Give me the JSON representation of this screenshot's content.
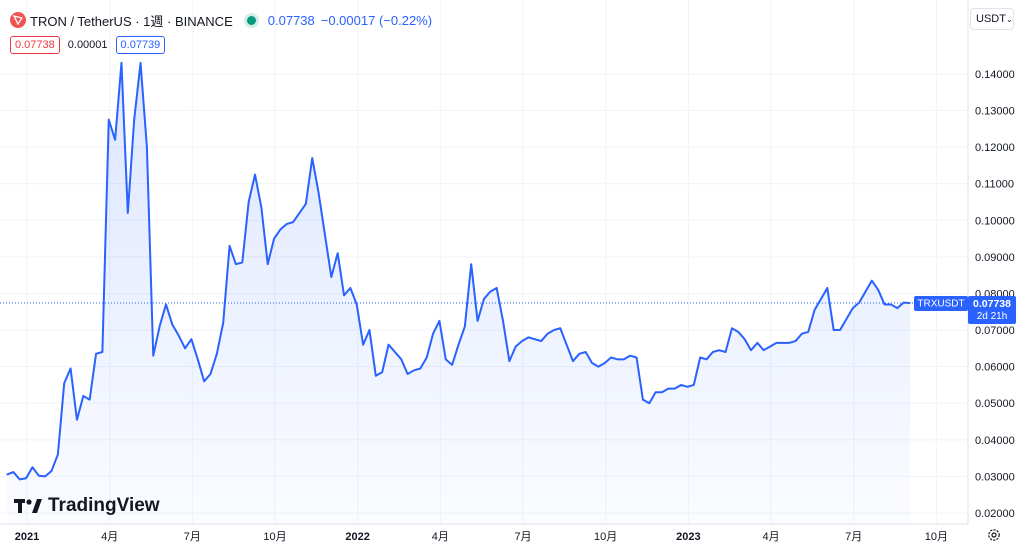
{
  "header": {
    "symbol_title": "TRON / TetherUS · 1週 · BINANCE",
    "last_price": "0.07738",
    "change": "−0.00017 (−0.22%)",
    "logo_icon": "tron-logo-icon",
    "status_icon": "market-open-dot-icon"
  },
  "quotes": {
    "bid": "0.07738",
    "spread": "0.00001",
    "ask": "0.07739"
  },
  "currency_select": {
    "value": "USDT",
    "icon": "chevron-down-icon"
  },
  "price_tag": {
    "symbol": "TRXUSDT",
    "price": "0.07738",
    "countdown": "2d 21h"
  },
  "watermark": {
    "text": "TradingView"
  },
  "settings_icon": "gear-icon",
  "colors": {
    "line": "#2962ff",
    "fill": "#2962ff",
    "bid": "#f23645",
    "ask": "#2962ff",
    "grid": "#f0f3fa",
    "status": "#089981"
  },
  "chart_data": {
    "type": "area",
    "ylim": [
      0.017,
      0.152
    ],
    "y_ticks": [
      0.02,
      0.03,
      0.04,
      0.05,
      0.06,
      0.07,
      0.08,
      0.09,
      0.1,
      0.11,
      0.12,
      0.13,
      0.14
    ],
    "y_tick_labels": [
      "0.02000",
      "0.03000",
      "0.04000",
      "0.05000",
      "0.06000",
      "0.07000",
      "0.08000",
      "0.09000",
      "0.10000",
      "0.11000",
      "0.12000",
      "0.13000",
      "0.14000"
    ],
    "x_ticks": [
      {
        "x": 0,
        "label": "2021",
        "bold": true
      },
      {
        "x": 13,
        "label": "4月",
        "bold": false
      },
      {
        "x": 26,
        "label": "7月",
        "bold": false
      },
      {
        "x": 39,
        "label": "10月",
        "bold": false
      },
      {
        "x": 52,
        "label": "2022",
        "bold": true
      },
      {
        "x": 65,
        "label": "4月",
        "bold": false
      },
      {
        "x": 78,
        "label": "7月",
        "bold": false
      },
      {
        "x": 91,
        "label": "10月",
        "bold": false
      },
      {
        "x": 104,
        "label": "2023",
        "bold": true
      },
      {
        "x": 117,
        "label": "4月",
        "bold": false
      },
      {
        "x": 130,
        "label": "7月",
        "bold": false
      },
      {
        "x": 143,
        "label": "10月",
        "bold": false
      }
    ],
    "xlim": [
      -1,
      148
    ],
    "series": [
      {
        "values": [
          0.0305,
          0.0312,
          0.0292,
          0.0295,
          0.0325,
          0.0302,
          0.03,
          0.0315,
          0.036,
          0.0555,
          0.0595,
          0.0455,
          0.052,
          0.051,
          0.0635,
          0.064,
          0.1275,
          0.122,
          0.143,
          0.102,
          0.1275,
          0.143,
          0.12,
          0.063,
          0.071,
          0.077,
          0.0715,
          0.0685,
          0.065,
          0.0675,
          0.062,
          0.056,
          0.058,
          0.0635,
          0.072,
          0.093,
          0.088,
          0.0885,
          0.105,
          0.1125,
          0.1035,
          0.088,
          0.095,
          0.0975,
          0.099,
          0.0995,
          0.102,
          0.1045,
          0.117,
          0.1075,
          0.096,
          0.0845,
          0.091,
          0.0795,
          0.0815,
          0.077,
          0.066,
          0.07,
          0.0575,
          0.0585,
          0.066,
          0.064,
          0.062,
          0.058,
          0.059,
          0.0595,
          0.0625,
          0.069,
          0.0725,
          0.062,
          0.0605,
          0.066,
          0.071,
          0.088,
          0.0725,
          0.0785,
          0.0805,
          0.0815,
          0.0725,
          0.0615,
          0.0655,
          0.067,
          0.068,
          0.0675,
          0.067,
          0.069,
          0.07,
          0.0705,
          0.066,
          0.0615,
          0.0635,
          0.064,
          0.061,
          0.06,
          0.061,
          0.0625,
          0.062,
          0.062,
          0.063,
          0.0625,
          0.051,
          0.05,
          0.053,
          0.053,
          0.054,
          0.054,
          0.055,
          0.0545,
          0.055,
          0.0625,
          0.062,
          0.064,
          0.0645,
          0.064,
          0.0705,
          0.0695,
          0.0675,
          0.0645,
          0.0665,
          0.0645,
          0.0655,
          0.0665,
          0.0665,
          0.0665,
          0.067,
          0.069,
          0.0695,
          0.0755,
          0.0785,
          0.0815,
          0.07,
          0.07,
          0.073,
          0.076,
          0.0775,
          0.0805,
          0.0835,
          0.081,
          0.077,
          0.077,
          0.076,
          0.0775,
          0.0774
        ]
      }
    ]
  }
}
